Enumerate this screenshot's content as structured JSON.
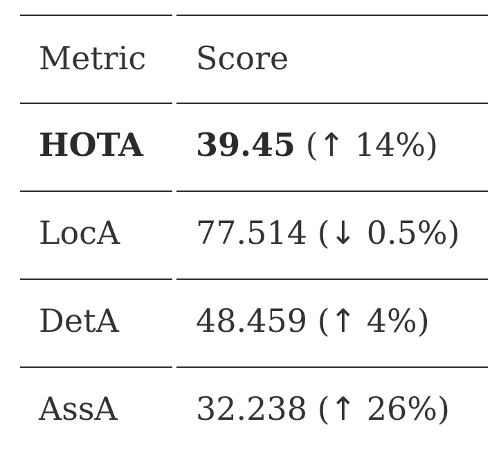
{
  "table": {
    "headers": {
      "metric": "Metric",
      "score": "Score"
    },
    "rows": [
      {
        "metric": "HOTA",
        "value": "39.45",
        "open": "(",
        "arrow": "↑",
        "change": "14%",
        "close": ")",
        "highlight": true
      },
      {
        "metric": "LocA",
        "value": "77.514",
        "open": "(",
        "arrow": "↓",
        "change": "0.5%",
        "close": ")",
        "highlight": false
      },
      {
        "metric": "DetA",
        "value": "48.459",
        "open": "(",
        "arrow": "↑",
        "change": "4%",
        "close": ")",
        "highlight": false
      },
      {
        "metric": "AssA",
        "value": "32.238",
        "open": "(",
        "arrow": "↑",
        "change": "26%",
        "close": ")",
        "highlight": false
      }
    ]
  }
}
